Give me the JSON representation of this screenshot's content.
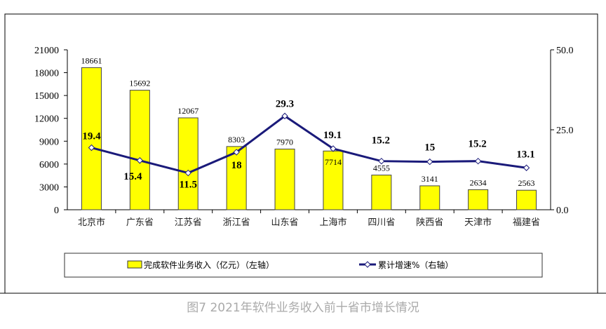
{
  "caption": "图7  2021年软件业务收入前十省市增长情况",
  "chart_data": {
    "type": "bar+line",
    "categories": [
      "北京市",
      "广东省",
      "江苏省",
      "浙江省",
      "山东省",
      "上海市",
      "四川省",
      "陕西省",
      "天津市",
      "福建省"
    ],
    "series": [
      {
        "name": "完成软件业务收入（亿元）（左轴）",
        "type": "bar",
        "axis": "left",
        "color": "#ffff00",
        "values": [
          18661,
          15692,
          12067,
          8303,
          7970,
          7714,
          4555,
          3141,
          2634,
          2563
        ]
      },
      {
        "name": "累计增速%（右轴）",
        "type": "line",
        "axis": "right",
        "color": "#1a1a7a",
        "values": [
          19.4,
          15.4,
          11.5,
          18.0,
          29.3,
          19.1,
          15.2,
          15.0,
          15.2,
          13.1
        ]
      }
    ],
    "y_left": {
      "lim": [
        0,
        21000
      ],
      "ticks": [
        "0",
        "3000",
        "6000",
        "9000",
        "12000",
        "15000",
        "18000",
        "21000"
      ]
    },
    "y_right": {
      "lim": [
        0,
        50
      ],
      "ticks": [
        "0.0",
        "25.0",
        "50.0"
      ]
    },
    "grid": false,
    "legend_position": "bottom"
  }
}
